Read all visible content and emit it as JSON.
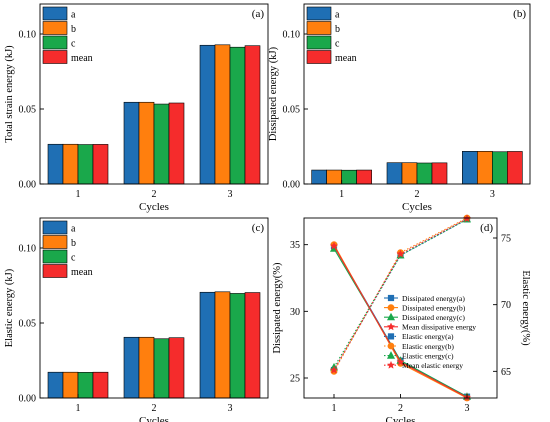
{
  "chart_data": [
    {
      "id": "a",
      "type": "bar",
      "panel_label": "(a)",
      "xlabel": "Cycles",
      "ylabel": "Total strain energy (kJ)",
      "categories": [
        "1",
        "2",
        "3"
      ],
      "ylim": [
        0,
        0.12
      ],
      "yticks": [
        "0.00",
        "0.05",
        "0.10"
      ],
      "ytick_values": [
        0.0,
        0.05,
        0.1
      ],
      "legend_position": "top-left",
      "series": [
        {
          "name": "a",
          "color": "#1f6fb4",
          "values": [
            0.0265,
            0.0545,
            0.0925
          ]
        },
        {
          "name": "b",
          "color": "#ff7f0e",
          "values": [
            0.0265,
            0.0545,
            0.0928
          ]
        },
        {
          "name": "c",
          "color": "#1aa84b",
          "values": [
            0.0263,
            0.0533,
            0.0912
          ]
        },
        {
          "name": "mean",
          "color": "#f52c2c",
          "values": [
            0.0264,
            0.054,
            0.0922
          ]
        }
      ]
    },
    {
      "id": "b",
      "type": "bar",
      "panel_label": "(b)",
      "xlabel": "Cycles",
      "ylabel": "Dissipated energy (kJ)",
      "categories": [
        "1",
        "2",
        "3"
      ],
      "ylim": [
        0,
        0.12
      ],
      "yticks": [
        "0.00",
        "0.05",
        "0.10"
      ],
      "ytick_values": [
        0.0,
        0.05,
        0.1
      ],
      "legend_position": "top-left",
      "series": [
        {
          "name": "a",
          "color": "#1f6fb4",
          "values": [
            0.0093,
            0.0142,
            0.0218
          ]
        },
        {
          "name": "b",
          "color": "#ff7f0e",
          "values": [
            0.0093,
            0.0142,
            0.0218
          ]
        },
        {
          "name": "c",
          "color": "#1aa84b",
          "values": [
            0.0092,
            0.014,
            0.0215
          ]
        },
        {
          "name": "mean",
          "color": "#f52c2c",
          "values": [
            0.0093,
            0.0141,
            0.0217
          ]
        }
      ]
    },
    {
      "id": "c",
      "type": "bar",
      "panel_label": "(c)",
      "xlabel": "Cycles",
      "ylabel": "Elastic energy (kJ)",
      "categories": [
        "1",
        "2",
        "3"
      ],
      "ylim": [
        0,
        0.12
      ],
      "yticks": [
        "0.00",
        "0.05",
        "0.10"
      ],
      "ytick_values": [
        0.0,
        0.05,
        0.1
      ],
      "legend_position": "top-left",
      "series": [
        {
          "name": "a",
          "color": "#1f6fb4",
          "values": [
            0.0172,
            0.0405,
            0.0705
          ]
        },
        {
          "name": "b",
          "color": "#ff7f0e",
          "values": [
            0.0172,
            0.0405,
            0.0708
          ]
        },
        {
          "name": "c",
          "color": "#1aa84b",
          "values": [
            0.0171,
            0.0395,
            0.0697
          ]
        },
        {
          "name": "mean",
          "color": "#f52c2c",
          "values": [
            0.0172,
            0.0402,
            0.0703
          ]
        }
      ]
    },
    {
      "id": "d",
      "type": "line",
      "panel_label": "(d)",
      "xlabel": "Cycles",
      "ylabel_left": "Dissipated energy(%)",
      "ylabel_right": "Elastic energy(%)",
      "x": [
        1,
        2,
        3
      ],
      "xticks": [
        "1",
        "2",
        "3"
      ],
      "ylim_left": [
        23.5,
        37
      ],
      "yticks_left": [
        "25",
        "30",
        "35"
      ],
      "ytick_values_left": [
        25,
        30,
        35
      ],
      "ylim_right": [
        63,
        76.5
      ],
      "yticks_right": [
        "65",
        "70",
        "75"
      ],
      "ytick_values_right": [
        65,
        70,
        75
      ],
      "legend_position": "center-right",
      "series": [
        {
          "name": "Dissipated energy(a)",
          "axis": "left",
          "color": "#1f6fb4",
          "marker": "square",
          "dash": "solid",
          "values": [
            34.9,
            26.3,
            23.6
          ]
        },
        {
          "name": "Dissipated energy(b)",
          "axis": "left",
          "color": "#ff7f0e",
          "marker": "circle",
          "dash": "solid",
          "values": [
            35.0,
            26.1,
            23.5
          ]
        },
        {
          "name": "Dissipated energy(c)",
          "axis": "left",
          "color": "#1aa84b",
          "marker": "triangle",
          "dash": "solid",
          "values": [
            34.7,
            26.3,
            23.6
          ]
        },
        {
          "name": "Mean dissipative energy",
          "axis": "left",
          "color": "#f52c2c",
          "marker": "star",
          "dash": "solid",
          "values": [
            34.9,
            26.2,
            23.55
          ]
        },
        {
          "name": "Elastic energy(a)",
          "axis": "right",
          "color": "#1f6fb4",
          "marker": "square",
          "dash": "dot",
          "values": [
            65.1,
            73.7,
            76.4
          ]
        },
        {
          "name": "Elastic energy(b)",
          "axis": "right",
          "color": "#ff7f0e",
          "marker": "circle",
          "dash": "dot",
          "values": [
            65.0,
            73.9,
            76.5
          ]
        },
        {
          "name": "Elastic energy(c)",
          "axis": "right",
          "color": "#1aa84b",
          "marker": "triangle",
          "dash": "dot",
          "values": [
            65.3,
            73.7,
            76.4
          ]
        },
        {
          "name": "Mean elastic energy",
          "axis": "right",
          "color": "#f52c2c",
          "marker": "star",
          "dash": "dot",
          "values": [
            65.1,
            73.8,
            76.45
          ]
        }
      ]
    }
  ]
}
